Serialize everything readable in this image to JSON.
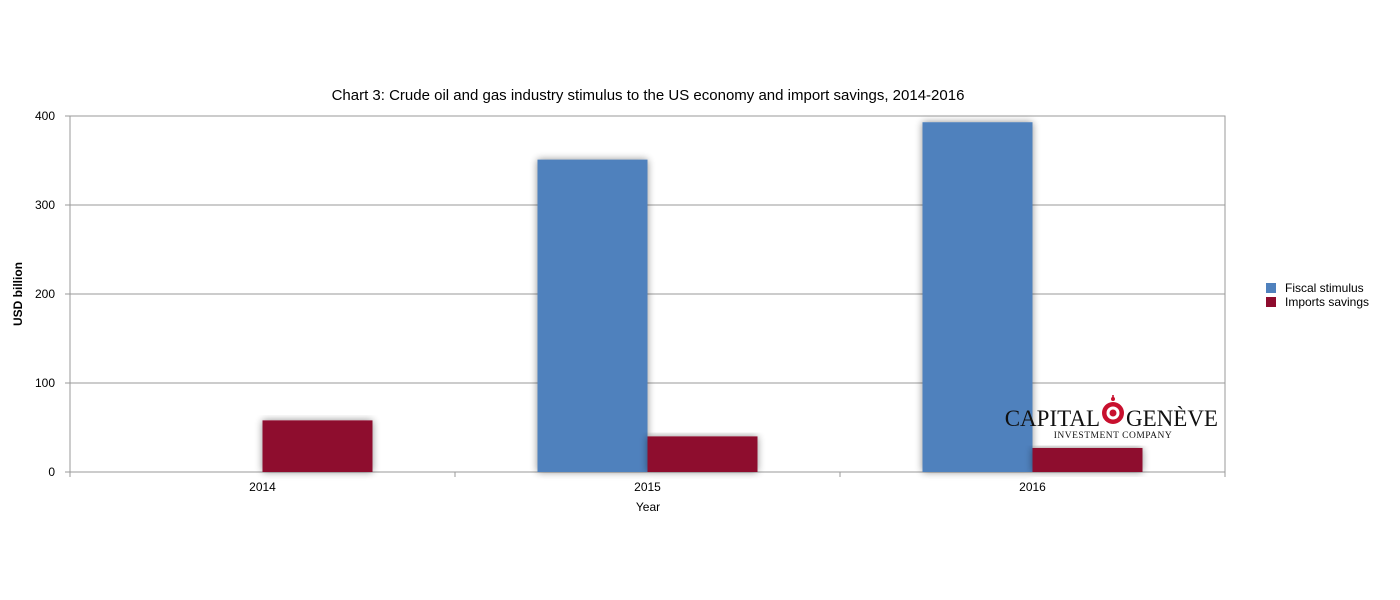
{
  "chart_data": {
    "type": "bar",
    "title": "Chart 3: Crude oil and gas industry stimulus to the US economy and import savings, 2014-2016",
    "xlabel": "Year",
    "ylabel": "USD billion",
    "categories": [
      "2014",
      "2015",
      "2016"
    ],
    "series": [
      {
        "name": "Fiscal stimulus",
        "values": [
          0,
          351,
          393
        ],
        "color": "#4f81bd"
      },
      {
        "name": "Imports savings",
        "values": [
          58,
          40,
          27
        ],
        "color": "#8e0c2e"
      }
    ],
    "ylim": [
      0,
      400
    ],
    "yticks": [
      0,
      100,
      200,
      300,
      400
    ],
    "grid": true,
    "legend_position": "right"
  },
  "logo": {
    "left_word": "CAPITAL",
    "right_word": "GENÈVE",
    "subtitle": "INVESTMENT COMPANY",
    "emblem_color": "#c8102e"
  }
}
